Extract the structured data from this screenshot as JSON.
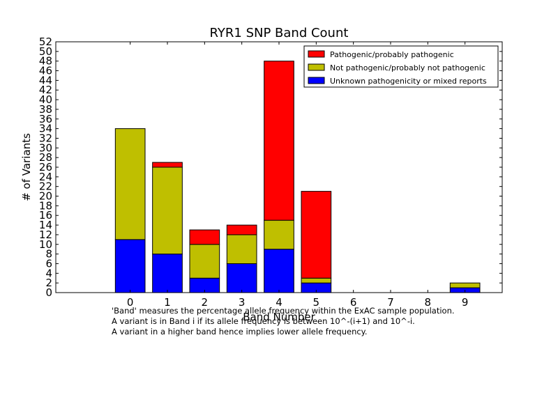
{
  "chart_data": {
    "type": "bar",
    "stacked": true,
    "title": "RYR1 SNP Band Count",
    "xlabel": "Band Number",
    "ylabel": "# of Variants",
    "categories": [
      "0",
      "1",
      "2",
      "3",
      "4",
      "5",
      "6",
      "7",
      "8",
      "9"
    ],
    "ylim": [
      0,
      52
    ],
    "yticks": [
      0,
      2,
      4,
      6,
      8,
      10,
      12,
      14,
      16,
      18,
      20,
      22,
      24,
      26,
      28,
      30,
      32,
      34,
      36,
      38,
      40,
      42,
      44,
      46,
      48,
      50,
      52
    ],
    "xlim": [
      -2,
      10
    ],
    "grid": false,
    "legend_position": "top-right",
    "series": [
      {
        "name": "Unknown pathogenicity or mixed reports",
        "color": "#0000ff",
        "values": [
          11,
          8,
          3,
          6,
          9,
          2,
          0,
          0,
          0,
          1
        ]
      },
      {
        "name": "Not pathogenic/probably not pathogenic",
        "color": "#bfbf00",
        "values": [
          23,
          18,
          7,
          6,
          6,
          1,
          0,
          0,
          0,
          1
        ]
      },
      {
        "name": "Pathogenic/probably pathogenic",
        "color": "#ff0000",
        "values": [
          0,
          1,
          3,
          2,
          33,
          18,
          0,
          0,
          0,
          0
        ]
      }
    ],
    "legend_order": [
      2,
      1,
      0
    ],
    "annotation": [
      "'Band' measures the percentage allele frequency within the ExAC sample population.",
      "A variant is in Band i if its allele frequency is between 10^-(i+1) and 10^-i.",
      "A variant in a higher band hence implies lower allele frequency."
    ]
  }
}
